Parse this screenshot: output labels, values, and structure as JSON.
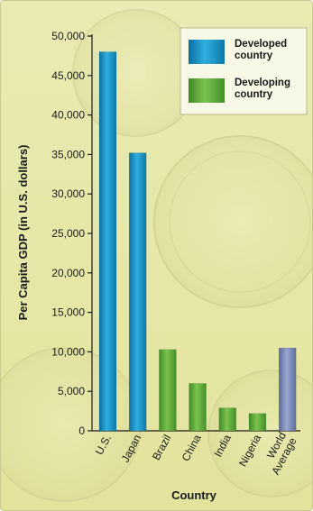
{
  "chart_data": {
    "type": "bar",
    "title": "",
    "xlabel": "Country",
    "ylabel": "Per Capita GDP (in U.S. dollars)",
    "ylim": [
      0,
      50000
    ],
    "yticks": [
      "0",
      "5,000",
      "10,000",
      "15,000",
      "20,000",
      "25,000",
      "30,000",
      "35,000",
      "40,000",
      "45,000",
      "50,000"
    ],
    "categories": [
      "U.S.",
      "Japan",
      "Brazil",
      "China",
      "India",
      "Nigeria",
      "World Average"
    ],
    "category_labels": [
      [
        "U.S."
      ],
      [
        "Japan"
      ],
      [
        "Brazil"
      ],
      [
        "China"
      ],
      [
        "India"
      ],
      [
        "Nigeria"
      ],
      [
        "World",
        "Average"
      ]
    ],
    "values": [
      48000,
      35200,
      10300,
      6000,
      2900,
      2200,
      10500
    ],
    "groups": [
      "developed",
      "developed",
      "developing",
      "developing",
      "developing",
      "developing",
      "average"
    ],
    "legend": {
      "placement": "top-right",
      "items": [
        {
          "key": "developed",
          "lines": [
            "Developed",
            "country"
          ]
        },
        {
          "key": "developing",
          "lines": [
            "Developing",
            "country"
          ]
        }
      ]
    },
    "colors": {
      "developed": "#1a8fc4",
      "developing": "#5ea83a",
      "average": "#7c88b6"
    },
    "grid": false
  }
}
